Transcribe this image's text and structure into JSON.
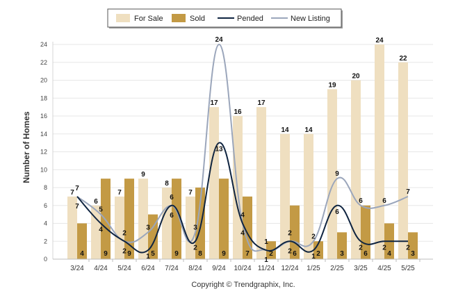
{
  "chart_data": {
    "type": "bar",
    "categories": [
      "3/24",
      "4/24",
      "5/24",
      "6/24",
      "7/24",
      "8/24",
      "9/24",
      "10/24",
      "11/24",
      "12/24",
      "1/25",
      "2/25",
      "3/25",
      "4/25",
      "5/25"
    ],
    "series": [
      {
        "name": "For Sale",
        "kind": "bar",
        "color": "#efdfc0",
        "values": [
          7,
          6,
          7,
          9,
          8,
          7,
          17,
          16,
          17,
          14,
          14,
          19,
          20,
          24,
          22
        ]
      },
      {
        "name": "Sold",
        "kind": "bar",
        "color": "#c39a45",
        "values": [
          4,
          9,
          9,
          5,
          9,
          8,
          9,
          7,
          2,
          6,
          2,
          3,
          6,
          4,
          3
        ]
      },
      {
        "name": "Pended",
        "kind": "line",
        "color": "#0f2440",
        "values": [
          7,
          4,
          2,
          1,
          6,
          2,
          13,
          4,
          1,
          2,
          1,
          6,
          2,
          2,
          2
        ]
      },
      {
        "name": "New Listing",
        "kind": "line",
        "color": "#9ba6bb",
        "values": [
          7,
          5,
          2,
          3,
          6,
          3,
          24,
          4,
          1,
          2,
          2,
          9,
          6,
          6,
          7
        ]
      }
    ],
    "ylabel": "Number of Homes",
    "xlabel": "",
    "ylim": [
      0,
      24
    ],
    "yticks": [
      0,
      2,
      4,
      6,
      8,
      10,
      12,
      14,
      16,
      18,
      20,
      22,
      24
    ],
    "grid": true,
    "legend_position": "top-center",
    "copyright": "Copyright © Trendgraphix, Inc."
  }
}
